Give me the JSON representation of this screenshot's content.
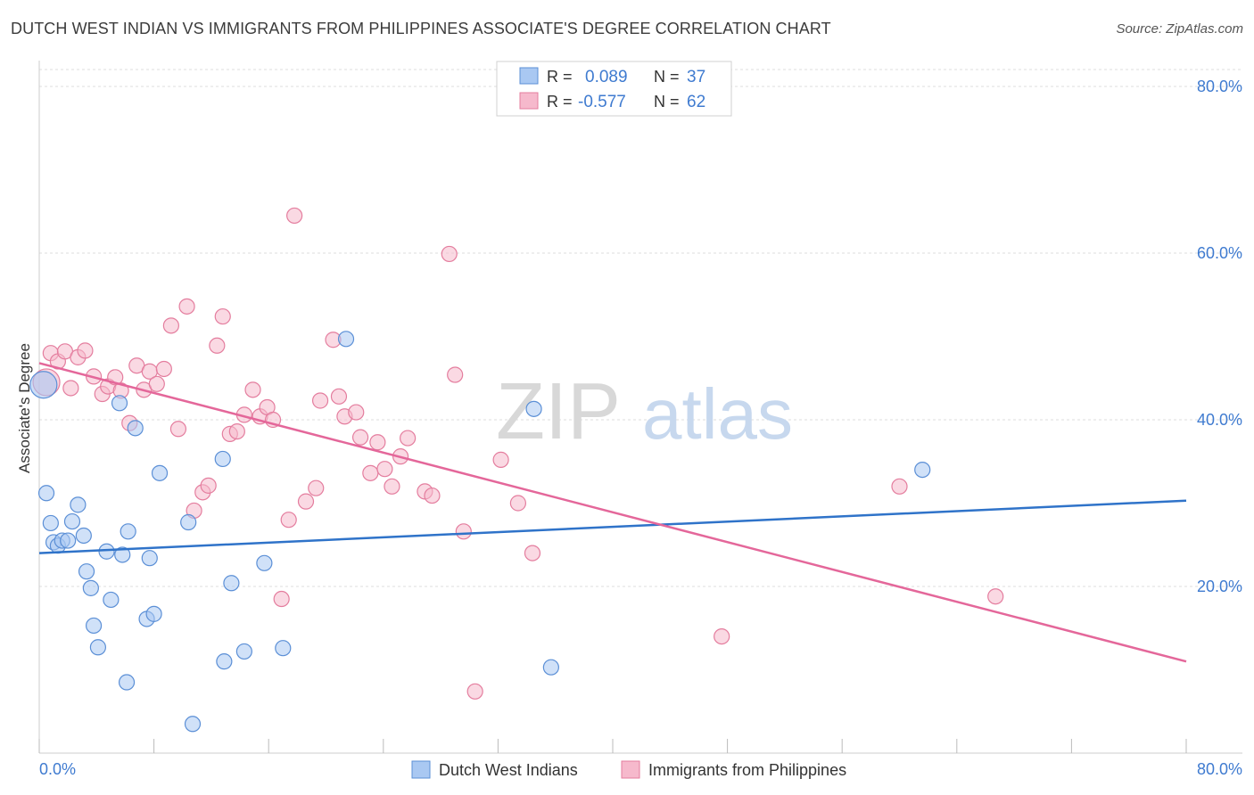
{
  "title": "DUTCH WEST INDIAN VS IMMIGRANTS FROM PHILIPPINES ASSOCIATE'S DEGREE CORRELATION CHART",
  "source": "Source: ZipAtlas.com",
  "watermark": {
    "zip": "ZIP",
    "atlas": "atlas"
  },
  "colors": {
    "blue_fill": "#a9c8f2",
    "blue_stroke": "#5b8fd6",
    "blue_line": "#2f73c9",
    "pink_fill": "#f6b9cc",
    "pink_stroke": "#e47d9e",
    "pink_line": "#e4679a",
    "axis_text": "#3f7bd0",
    "grid": "#dddddd"
  },
  "legend": {
    "rows": [
      {
        "r_label": "R =",
        "r_value": "0.089",
        "n_label": "N =",
        "n_value": "37"
      },
      {
        "r_label": "R =",
        "r_value": "-0.577",
        "n_label": "N =",
        "n_value": "62"
      }
    ]
  },
  "chart_data": {
    "type": "scatter",
    "ylabel": "Associate's Degree",
    "xlim": [
      0,
      80
    ],
    "ylim": [
      0,
      80
    ],
    "y_ticks": [
      {
        "value": 20,
        "label": "20.0%"
      },
      {
        "value": 40,
        "label": "40.0%"
      },
      {
        "value": 60,
        "label": "60.0%"
      },
      {
        "value": 80,
        "label": "80.0%"
      }
    ],
    "x_tick_labels": {
      "min": "0.0%",
      "max": "80.0%"
    },
    "x_minor_ticks": [
      0,
      8,
      16,
      24,
      32,
      40,
      48,
      56,
      64,
      72,
      80
    ],
    "grid": true,
    "legend_placement": "top-center",
    "series": [
      {
        "name": "Dutch West Indians",
        "color": "blue",
        "trend": {
          "x0": 0,
          "y0": 24.0,
          "x1": 80,
          "y1": 30.3
        },
        "points": [
          [
            0.3,
            44.2
          ],
          [
            0.5,
            31.2
          ],
          [
            0.8,
            27.6
          ],
          [
            1.0,
            25.3
          ],
          [
            1.3,
            24.9
          ],
          [
            1.6,
            25.5
          ],
          [
            2.0,
            25.5
          ],
          [
            2.3,
            27.8
          ],
          [
            2.7,
            29.8
          ],
          [
            3.1,
            26.1
          ],
          [
            3.3,
            21.8
          ],
          [
            3.6,
            19.8
          ],
          [
            3.8,
            15.3
          ],
          [
            4.1,
            12.7
          ],
          [
            4.7,
            24.2
          ],
          [
            5.0,
            18.4
          ],
          [
            5.6,
            42.0
          ],
          [
            5.8,
            23.8
          ],
          [
            6.1,
            8.5
          ],
          [
            6.2,
            26.6
          ],
          [
            6.7,
            39.0
          ],
          [
            7.5,
            16.1
          ],
          [
            7.7,
            23.4
          ],
          [
            8.0,
            16.7
          ],
          [
            8.4,
            33.6
          ],
          [
            10.4,
            27.7
          ],
          [
            10.7,
            3.5
          ],
          [
            12.8,
            35.3
          ],
          [
            12.9,
            11.0
          ],
          [
            13.4,
            20.4
          ],
          [
            14.3,
            12.2
          ],
          [
            15.7,
            22.8
          ],
          [
            17.0,
            12.6
          ],
          [
            21.4,
            49.7
          ],
          [
            34.5,
            41.3
          ],
          [
            35.7,
            10.3
          ],
          [
            61.6,
            34.0
          ]
        ]
      },
      {
        "name": "Immigrants from Philippines",
        "color": "pink",
        "trend": {
          "x0": 0,
          "y0": 46.8,
          "x1": 80,
          "y1": 11.0
        },
        "points": [
          [
            0.5,
            44.5
          ],
          [
            0.8,
            48.0
          ],
          [
            1.3,
            47.0
          ],
          [
            1.8,
            48.2
          ],
          [
            2.2,
            43.8
          ],
          [
            2.7,
            47.5
          ],
          [
            3.2,
            48.3
          ],
          [
            3.8,
            45.2
          ],
          [
            4.4,
            43.1
          ],
          [
            4.8,
            44.0
          ],
          [
            5.3,
            45.1
          ],
          [
            5.7,
            43.5
          ],
          [
            6.3,
            39.6
          ],
          [
            6.8,
            46.5
          ],
          [
            7.3,
            43.6
          ],
          [
            7.7,
            45.8
          ],
          [
            8.2,
            44.3
          ],
          [
            8.7,
            46.1
          ],
          [
            9.2,
            51.3
          ],
          [
            9.7,
            38.9
          ],
          [
            10.3,
            53.6
          ],
          [
            10.8,
            29.1
          ],
          [
            11.4,
            31.3
          ],
          [
            11.8,
            32.1
          ],
          [
            12.4,
            48.9
          ],
          [
            12.8,
            52.4
          ],
          [
            13.3,
            38.3
          ],
          [
            13.8,
            38.6
          ],
          [
            14.3,
            40.6
          ],
          [
            14.9,
            43.6
          ],
          [
            15.4,
            40.4
          ],
          [
            15.9,
            41.5
          ],
          [
            16.3,
            40.0
          ],
          [
            16.9,
            18.5
          ],
          [
            17.4,
            28.0
          ],
          [
            17.8,
            64.5
          ],
          [
            18.6,
            30.2
          ],
          [
            19.3,
            31.8
          ],
          [
            19.6,
            42.3
          ],
          [
            20.5,
            49.6
          ],
          [
            20.9,
            42.8
          ],
          [
            21.3,
            40.4
          ],
          [
            22.1,
            40.9
          ],
          [
            22.4,
            37.9
          ],
          [
            23.1,
            33.6
          ],
          [
            23.6,
            37.3
          ],
          [
            24.1,
            34.1
          ],
          [
            24.6,
            32.0
          ],
          [
            25.2,
            35.6
          ],
          [
            25.7,
            37.8
          ],
          [
            26.9,
            31.4
          ],
          [
            27.4,
            30.9
          ],
          [
            28.6,
            59.9
          ],
          [
            29.0,
            45.4
          ],
          [
            29.6,
            26.6
          ],
          [
            30.4,
            7.4
          ],
          [
            32.2,
            35.2
          ],
          [
            33.4,
            30.0
          ],
          [
            34.4,
            24.0
          ],
          [
            47.6,
            14.0
          ],
          [
            60.0,
            32.0
          ],
          [
            66.7,
            18.8
          ]
        ]
      }
    ],
    "bottom_legend": [
      {
        "label": "Dutch West Indians",
        "color": "blue"
      },
      {
        "label": "Immigrants from Philippines",
        "color": "pink"
      }
    ]
  }
}
